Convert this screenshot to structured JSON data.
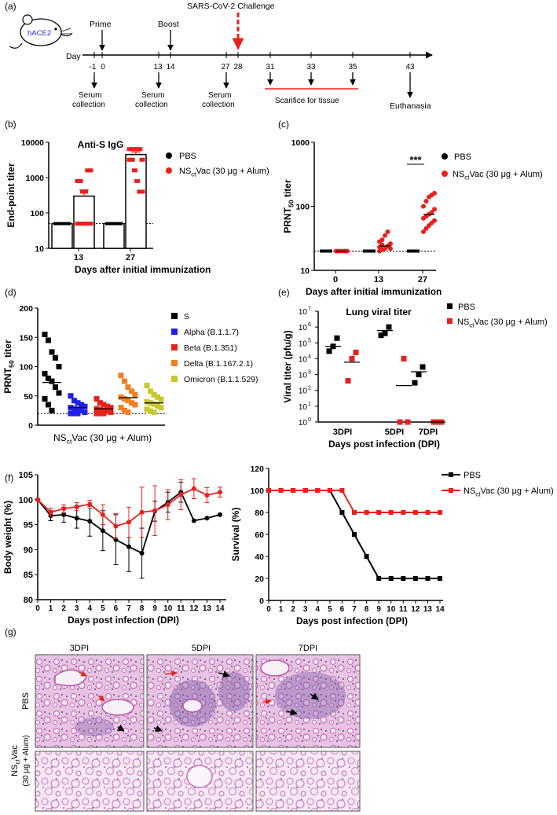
{
  "panels": {
    "a": {
      "label": "(a)",
      "mouse_label": "hACE2",
      "day_label": "Day",
      "prime": "Prime",
      "boost": "Boost",
      "challenge": "SARS-CoV-2 Challenge",
      "days": [
        -1,
        0,
        13,
        14,
        27,
        28,
        31,
        33,
        35,
        43
      ],
      "serum1": [
        "Serum",
        "collection"
      ],
      "serum2": [
        "Serum",
        "collection"
      ],
      "serum3": [
        "Serum",
        "collection"
      ],
      "scarifice": "Scarifice for tissue",
      "euthanasia": "Euthanasia"
    },
    "b": {
      "label": "(b)"
    },
    "c": {
      "label": "(c)"
    },
    "d": {
      "label": "(d)"
    },
    "e": {
      "label": "(e)"
    },
    "f": {
      "label": "(f)"
    },
    "g": {
      "label": "(g)",
      "cols": [
        "3DPI",
        "5DPI",
        "7DPI"
      ],
      "row1": "PBS",
      "row2_line1": "NS",
      "row2_sub": "ct",
      "row2_rest": "Vac",
      "row2_line2": "(30 μg + Alum)"
    }
  },
  "colors": {
    "pbs": "#000000",
    "vac": "#e8211d",
    "alpha": "#1f1fe6",
    "beta": "#e8211d",
    "delta": "#f08020",
    "omicron": "#c8c82a",
    "challenge": "#e8211d",
    "he_pink": "#e6b0d8",
    "he_purple": "#8c5cb0"
  },
  "chart_data": [
    {
      "id": "b",
      "type": "bar",
      "title": "Anti-S IgG",
      "xlabel": "Days after initial immunization",
      "ylabel": "End-point titer",
      "yscale": "log",
      "ylim": [
        10,
        10000
      ],
      "ytick_labels": [
        "10",
        "100",
        "1000",
        "10000"
      ],
      "categories": [
        "13",
        "27"
      ],
      "series": [
        {
          "name": "PBS",
          "values": [
            50,
            50
          ]
        },
        {
          "name_main": "NS",
          "name_sub": "ct",
          "name_rest": "Vac (30 μg + Alum)",
          "values": [
            300,
            4500
          ],
          "sem": [
            150,
            800
          ],
          "points": [
            [
              50,
              50,
              50,
              50,
              1600,
              1600,
              800,
              800,
              400,
              400,
              50,
              50
            ],
            [
              6400,
              6400,
              6400,
              6400,
              6400,
              3200,
              3200,
              3200,
              1600,
              800,
              400,
              400
            ]
          ]
        }
      ],
      "legend": "top-right"
    },
    {
      "id": "c",
      "type": "scatter",
      "title": "",
      "xlabel": "Days after initial immunization",
      "ylabel_main": "PRNT",
      "ylabel_sub": "50",
      "ylabel_rest": " titer",
      "yscale": "log",
      "ylim": [
        10,
        1000
      ],
      "ytick_labels": [
        "10",
        "100",
        "1000"
      ],
      "categories": [
        "0",
        "13",
        "27"
      ],
      "series": [
        {
          "name": "PBS",
          "mean": [
            20,
            20,
            20
          ]
        },
        {
          "name_main": "NS",
          "name_sub": "ct",
          "name_rest": "Vac (30 μg + Alum)",
          "mean": [
            20,
            24,
            75
          ],
          "points": [
            [
              20,
              20,
              20,
              20,
              20,
              20
            ],
            [
              20,
              21,
              22,
              24,
              26,
              28,
              30,
              35,
              40,
              22,
              23,
              25
            ],
            [
              40,
              45,
              50,
              55,
              60,
              65,
              70,
              75,
              80,
              90,
              100,
              120,
              140,
              150,
              160
            ]
          ]
        }
      ],
      "annotation": "***",
      "legend": "top-right"
    },
    {
      "id": "d",
      "type": "scatter",
      "xlabel_main": "NS",
      "xlabel_sub": "ct",
      "xlabel_rest": "Vac (30 μg + Alum)",
      "ylabel_main": "PRNT",
      "ylabel_sub": "50",
      "ylabel_rest": " titer",
      "ylim": [
        0,
        200
      ],
      "yticks": [
        0,
        50,
        100,
        150,
        200
      ],
      "series": [
        {
          "name": "S",
          "mean": 73,
          "points": [
            155,
            145,
            125,
            115,
            100,
            88,
            80,
            75,
            65,
            55,
            45,
            35,
            25
          ]
        },
        {
          "name": "Alpha (B.1.1.7)",
          "mean": 30,
          "points": [
            50,
            42,
            38,
            35,
            32,
            30,
            28,
            27,
            25,
            22,
            20,
            20,
            20
          ]
        },
        {
          "name": "Beta (B.1.351)",
          "mean": 28,
          "points": [
            45,
            38,
            35,
            32,
            30,
            28,
            26,
            25,
            24,
            22,
            20,
            20,
            20
          ]
        },
        {
          "name": "Delta (B.1.167.2.1)",
          "mean": 47,
          "points": [
            85,
            75,
            65,
            58,
            52,
            48,
            45,
            42,
            38,
            35,
            30,
            25,
            22
          ]
        },
        {
          "name": "Omicron (B.1.1.529)",
          "mean": 38,
          "points": [
            68,
            58,
            52,
            48,
            44,
            40,
            38,
            36,
            33,
            30,
            27,
            24,
            22
          ]
        }
      ],
      "threshold": 20,
      "legend": "right"
    },
    {
      "id": "e",
      "type": "scatter",
      "title": "Lung viral titer",
      "xlabel": "Days post infection (DPI)",
      "ylabel": "Viral titer (pfu/g)",
      "yscale": "log",
      "ylim": [
        1,
        10000000
      ],
      "ytick_exps": [
        "0",
        "1",
        "2",
        "3",
        "4",
        "5",
        "6",
        "7"
      ],
      "categories": [
        "3DPI",
        "5DPI",
        "7DPI"
      ],
      "series": [
        {
          "name": "PBS",
          "mean": [
            60000,
            600000,
            1500
          ],
          "points": [
            [
              30000,
              60000,
              200000
            ],
            [
              300000,
              400000,
              1000000
            ],
            [
              300,
              1000,
              3000
            ]
          ]
        },
        {
          "name_main": "NS",
          "name_sub": "ct",
          "name_rest": "Vac (30 μg + Alum)",
          "mean": [
            6000,
            200,
            1
          ],
          "points": [
            [
              400,
              10000,
              25000
            ],
            [
              1,
              10000,
              1
            ],
            [
              1,
              1,
              1
            ]
          ]
        }
      ],
      "legend": "top-right"
    },
    {
      "id": "f1",
      "type": "line",
      "xlabel": "Days post infection (DPI)",
      "ylabel": "Body weight (%)",
      "ylim": [
        80,
        105
      ],
      "yticks": [
        80,
        85,
        90,
        95,
        100,
        105
      ],
      "x": [
        0,
        1,
        2,
        3,
        4,
        5,
        6,
        7,
        8,
        9,
        10,
        11,
        12,
        13,
        14
      ],
      "series": [
        {
          "name": "PBS",
          "values": [
            100,
            96.8,
            97,
            96.3,
            95.7,
            93.8,
            92,
            90.6,
            89.3,
            97.7,
            99.5,
            101.5,
            95.8,
            96.3,
            97
          ],
          "err": [
            0,
            1,
            1.5,
            2,
            3,
            4,
            5,
            5,
            5,
            2,
            2,
            2,
            0,
            0,
            0
          ]
        },
        {
          "name": "Vac",
          "values": [
            100,
            97.5,
            98.2,
            98.6,
            99.1,
            97,
            94.7,
            95.5,
            97.5,
            97.8,
            99,
            101,
            102.2,
            100.9,
            101.5
          ],
          "err": [
            0,
            0.8,
            0.8,
            0.8,
            0.8,
            2,
            2.5,
            3,
            5,
            5,
            3,
            3,
            2,
            1.5,
            1
          ]
        }
      ]
    },
    {
      "id": "f2",
      "type": "line",
      "xlabel": "Days post infection (DPI)",
      "ylabel": "Survival (%)",
      "ylim": [
        0,
        120
      ],
      "yticks": [
        0,
        20,
        40,
        60,
        80,
        100,
        120
      ],
      "x": [
        0,
        1,
        2,
        3,
        4,
        5,
        6,
        7,
        8,
        9,
        10,
        11,
        12,
        13,
        14
      ],
      "series": [
        {
          "name": "PBS",
          "values": [
            100,
            100,
            100,
            100,
            100,
            100,
            80,
            60,
            40,
            20,
            20,
            20,
            20,
            20,
            20
          ]
        },
        {
          "name_main": "NS",
          "name_sub": "ct",
          "name_rest": "Vac (30 μg + Alum)",
          "values": [
            100,
            100,
            100,
            100,
            100,
            100,
            100,
            80,
            80,
            80,
            80,
            80,
            80,
            80,
            80
          ]
        }
      ],
      "legend": "top-right"
    }
  ]
}
